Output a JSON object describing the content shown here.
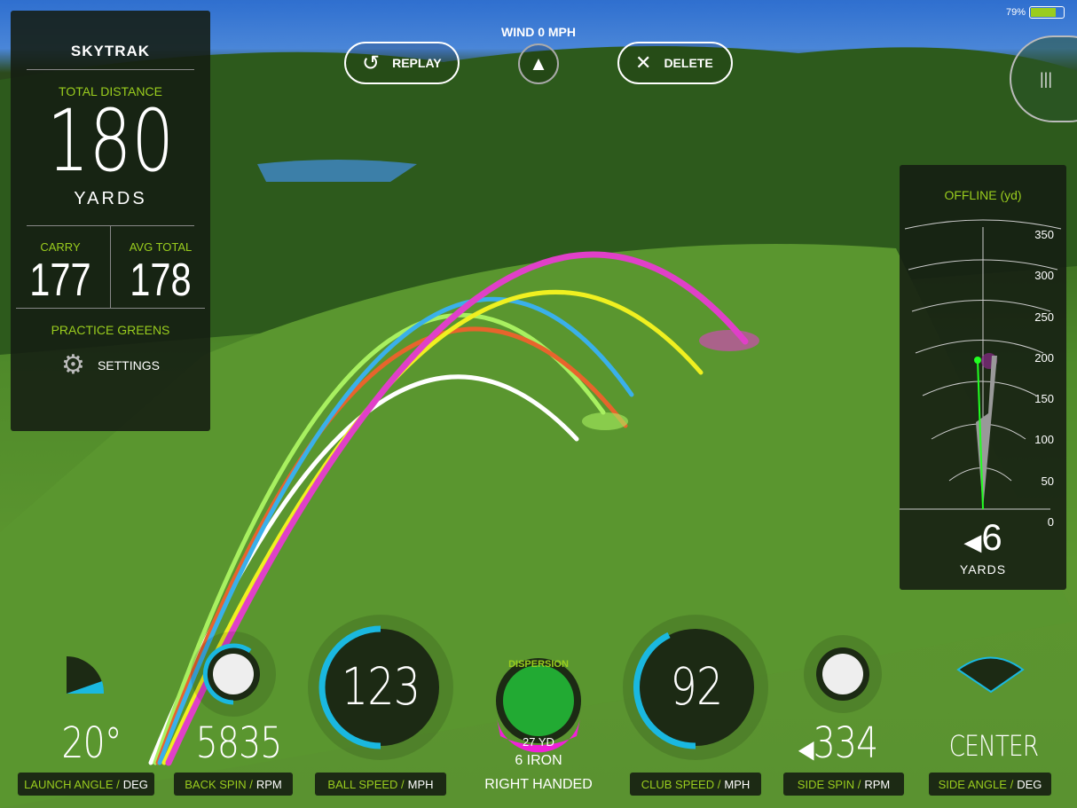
{
  "status": {
    "battery": "79%",
    "battery_level": 0.79
  },
  "top": {
    "wind": "WIND 0 MPH",
    "replay": "REPLAY",
    "delete": "DELETE"
  },
  "left": {
    "brand": "SKYTRAK",
    "total_distance_label": "TOTAL DISTANCE",
    "total_distance": "180",
    "units": "YARDS",
    "carry_label": "CARRY",
    "carry": "177",
    "avg_label": "AVG TOTAL",
    "avg": "178",
    "mode": "PRACTICE GREENS",
    "settings": "SETTINGS"
  },
  "offline": {
    "title": "OFFLINE (yd)",
    "ticks": [
      "350",
      "300",
      "250",
      "200",
      "150",
      "100",
      "50",
      "0"
    ],
    "value": "6",
    "units": "YARDS",
    "direction": "left"
  },
  "metrics": {
    "launch": {
      "value": "20°",
      "label": "LAUNCH ANGLE",
      "unit": "DEG"
    },
    "backspin": {
      "value": "5835",
      "label": "BACK SPIN",
      "unit": "RPM"
    },
    "ballspeed": {
      "value": "123",
      "label": "BALL SPEED",
      "unit": "MPH"
    },
    "clubspeed": {
      "value": "92",
      "label": "CLUB SPEED",
      "unit": "MPH"
    },
    "sidespin": {
      "value": "334",
      "label": "SIDE SPIN",
      "unit": "RPM"
    },
    "sideangle": {
      "value": "CENTER",
      "label": "SIDE ANGLE",
      "unit": "DEG"
    }
  },
  "club": {
    "dispersion": "DISPERSION",
    "dispersion_value": "27 YD",
    "club": "6 IRON",
    "hand": "RIGHT HANDED"
  },
  "colors": {
    "accent": "#9acd1e",
    "gauge": "#1ab8e0",
    "magenta": "#e83ad0"
  }
}
